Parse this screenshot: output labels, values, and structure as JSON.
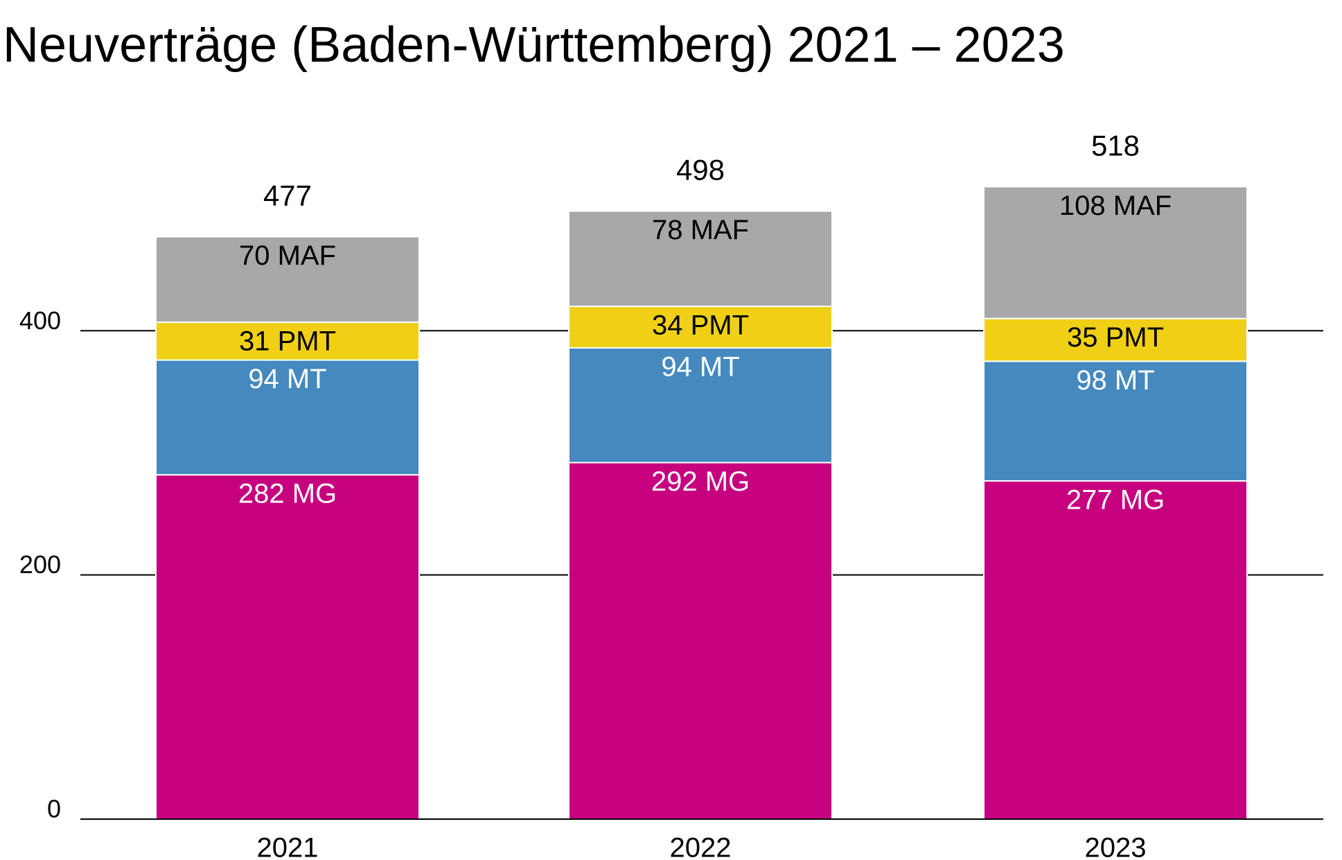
{
  "chart_data": {
    "type": "stacked_bar",
    "title": "Neuverträge (Baden-Württemberg) 2021 – 2023",
    "categories": [
      "2021",
      "2022",
      "2023"
    ],
    "series": [
      {
        "color": "#c6007e",
        "label_color": "#ffffff",
        "values": [
          282,
          292,
          277
        ],
        "value_labels": [
          "282 MG",
          "292 MG",
          "277 MG"
        ]
      },
      {
        "color": "#4589be",
        "label_color": "#ffffff",
        "values": [
          94,
          94,
          98
        ],
        "value_labels": [
          "94 MT",
          "94 MT",
          "98 MT"
        ]
      },
      {
        "color": "#f0d016",
        "label_color": "#000000",
        "values": [
          31,
          34,
          35
        ],
        "value_labels": [
          "31 PMT",
          "34 PMT",
          "35 PMT"
        ]
      },
      {
        "color": "#a7a8a7",
        "label_color": "#000000",
        "values": [
          70,
          78,
          108
        ],
        "value_labels": [
          "70 MAF",
          "78 MAF",
          "108 MAF"
        ]
      }
    ],
    "totals": [
      477,
      498,
      518
    ],
    "ylim": [
      0,
      550
    ],
    "yticks": [
      0,
      200,
      400
    ],
    "grid": true
  }
}
